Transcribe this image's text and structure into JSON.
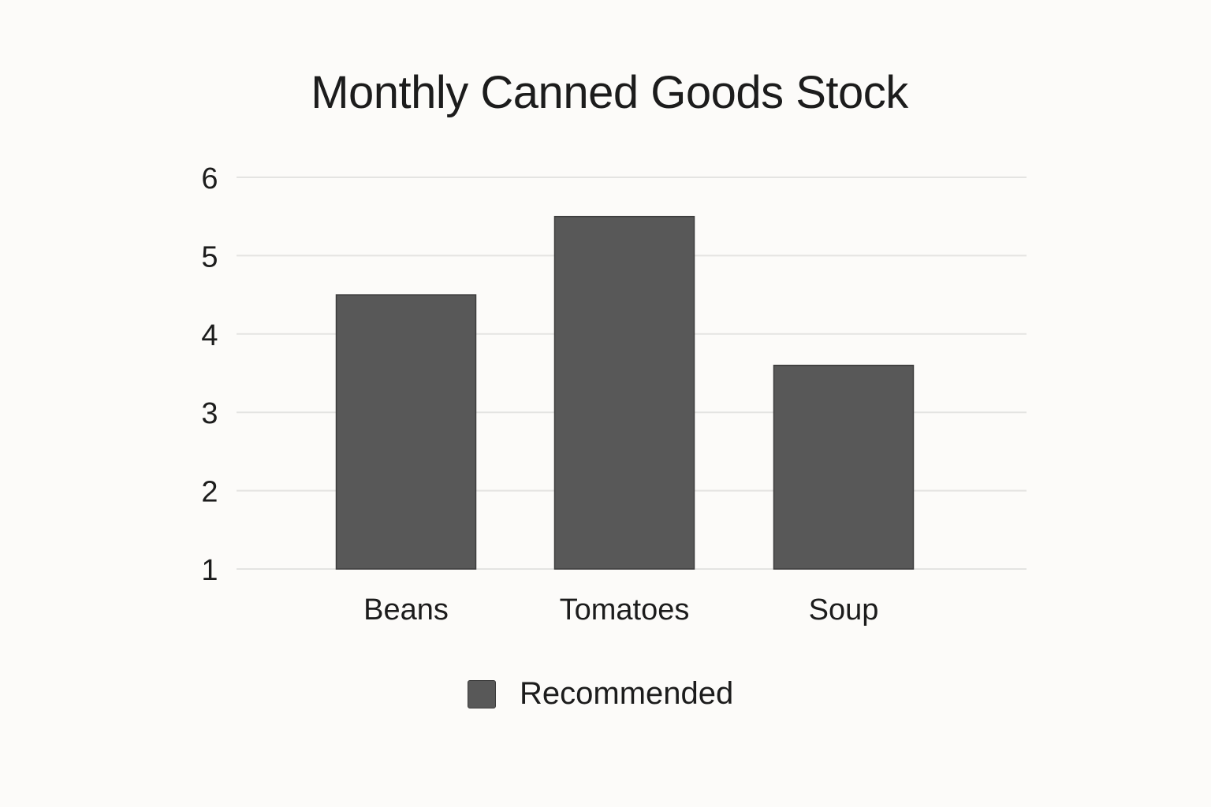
{
  "chart_data": {
    "type": "bar",
    "title": "Monthly Canned Goods Stock",
    "categories": [
      "Beans",
      "Tomatoes",
      "Soup"
    ],
    "series": [
      {
        "name": "Recommended",
        "values": [
          4.5,
          5.5,
          3.6
        ]
      }
    ],
    "ylim": [
      1,
      6
    ],
    "yticks": [
      "1",
      "2",
      "3",
      "4",
      "5",
      "6"
    ],
    "grid": true,
    "legend_position": "bottom-center",
    "colors": {
      "bar": "#585858",
      "bar_stroke": "#3c3c3c",
      "grid": "#e4e4e2",
      "text": "#1c1c1c",
      "background": "#fcfbf9"
    }
  }
}
